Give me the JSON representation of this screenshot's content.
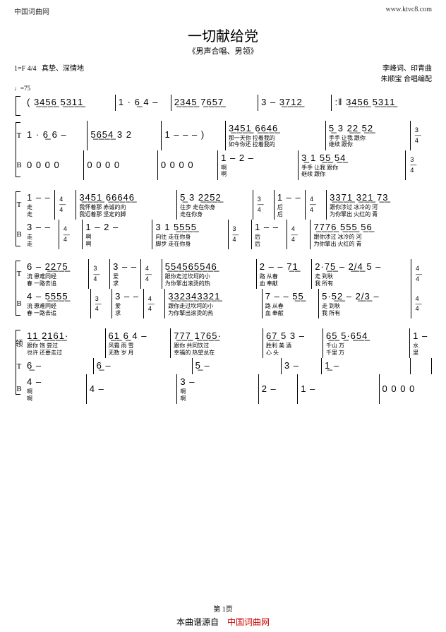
{
  "header": {
    "site_left": "中国词曲网",
    "site_right": "www.ktvc8.com"
  },
  "title": "一切献给党",
  "subtitle": "《男声合唱、男领》",
  "meta": {
    "key_time": "1=F 4/4",
    "expression": "真挚、深情地",
    "credits_line1": "李峰词、印青曲",
    "credits_line2": "朱顺宝 合唱编配",
    "tempo": "♩=75"
  },
  "systems": [
    {
      "bracket_height": 26,
      "parts": [
        {
          "label": "",
          "measures": [
            {
              "notes": "( 3̲4̲5̲6̲ 5̲3̲1̲1̲"
            },
            {
              "notes": "1 · 6̲ 4  –"
            },
            {
              "notes": "2̲3̲4̲5̲  7̲6̲5̲7̲"
            },
            {
              "notes": "3  –   3̲7̲1̲2̲"
            },
            {
              "notes": ":‖ 3̲4̲5̲6̲  5̲3̲1̲1̲",
              "class": "end double-bar"
            }
          ]
        }
      ]
    },
    {
      "bracket_height": 76,
      "parts": [
        {
          "label": "T",
          "measures": [
            {
              "notes": "1 · 6̲ 6  –"
            },
            {
              "notes": "5̲6̲5̲4̲ 3  2"
            },
            {
              "notes": "1  – –  – )"
            },
            {
              "notes": "3̲4̲5̲1̲  6̲6̲4̲6̲",
              "lyrics": [
                "那一天你 拉着我的",
                "如今你还 拉着我的"
              ]
            },
            {
              "notes": "5̲ 3  2̲2̲ 5̲2̲",
              "lyrics": [
                "手手  让我  跟你",
                "      继续  跟你"
              ]
            },
            {
              "notes": "3/4",
              "ts": true,
              "class": "end"
            }
          ]
        },
        {
          "label": "B",
          "measures": [
            {
              "notes": " 0 0 0 0"
            },
            {
              "notes": " 0 0   0 0"
            },
            {
              "notes": " 0 0 0 0"
            },
            {
              "notes": " 1  –  2  –",
              "lyrics": [
                "啊",
                "啊"
              ]
            },
            {
              "notes": "3̲ 1  5̲5̲ 5̲4̲",
              "lyrics": [
                "手手  让我  跟你",
                "      继续  跟你"
              ]
            },
            {
              "notes": "3/4",
              "ts": true,
              "class": "end"
            }
          ]
        }
      ]
    },
    {
      "bracket_height": 76,
      "parts": [
        {
          "label": "T",
          "measures": [
            {
              "notes": "1 – –",
              "lyrics": [
                "走",
                "走"
              ]
            },
            {
              "notes": "4/4",
              "ts": true
            },
            {
              "notes": "3̲4̲5̲1̲ 6̲6̲6̲4̲6̲",
              "lyrics": [
                "我怀着那 赤诚的向",
                "我迈着那 坚定的脚"
              ]
            },
            {
              "notes": "5̲ 3  2̲2̲5̲2̲",
              "lyrics": [
                "往步 走在你身",
                "    走在你身"
              ]
            },
            {
              "notes": "3/4",
              "ts": true
            },
            {
              "notes": "1 – –",
              "lyrics": [
                "后",
                "后"
              ]
            },
            {
              "notes": "4/4",
              "ts": true
            },
            {
              "notes": "3̲3̲7̲1̲ 3̲2̲1̲ 7̲3̲",
              "lyrics": [
                "跟你涉过 冰冷的 河",
                "为你擎出 火红的 青"
              ],
              "class": "end"
            }
          ]
        },
        {
          "label": "B",
          "measures": [
            {
              "notes": "3 – –",
              "lyrics": [
                "走",
                "走"
              ]
            },
            {
              "notes": "4/4",
              "ts": true
            },
            {
              "notes": " 1  –  2  –",
              "lyrics": [
                "啊",
                "啊"
              ]
            },
            {
              "notes": "3 1 5̲5̲5̲5̲",
              "lyrics": [
                "向往 走在你身",
                "脚步 走在你身"
              ]
            },
            {
              "notes": "3/4",
              "ts": true
            },
            {
              "notes": "1 – –",
              "lyrics": [
                "后",
                "后"
              ]
            },
            {
              "notes": "4/4",
              "ts": true
            },
            {
              "notes": "7̲7̲7̲6̲ 5̲5̲5̲ 5̲6̲",
              "lyrics": [
                "跟你涉过 冰冷的 河",
                "为你擎出 火红的 青"
              ],
              "class": "end"
            }
          ]
        }
      ]
    },
    {
      "bracket_height": 76,
      "parts": [
        {
          "label": "T",
          "measures": [
            {
              "notes": "6 – 2̲2̲7̲5̲",
              "lyrics": [
                "流   患难同经",
                "春   一路去追"
              ]
            },
            {
              "notes": "3/4",
              "ts": true
            },
            {
              "notes": "3 – –",
              "lyrics": [
                "爱",
                "求"
              ]
            },
            {
              "notes": "4/4",
              "ts": true
            },
            {
              "notes": "5̲5̲4̲5̲6̲5̲5̲4̲6̲",
              "lyrics": [
                "跟你走过坎坷的小",
                "为你擎出滚烫的热"
              ]
            },
            {
              "notes": "2 – – 7̲1̲",
              "lyrics": [
                "路      从春",
                "血      奉献"
              ]
            },
            {
              "notes": "2·7̲5̲ – 2̲/̲4̲ 5 –",
              "lyrics": [
                "走  到秋",
                "我  所有"
              ]
            },
            {
              "notes": "4/4",
              "ts": true,
              "class": "end"
            }
          ]
        },
        {
          "label": "B",
          "measures": [
            {
              "notes": "4 – 5̲5̲5̲5̲",
              "lyrics": [
                "流   患难同经",
                "春   一路去追"
              ]
            },
            {
              "notes": "3/4",
              "ts": true
            },
            {
              "notes": "3 – –",
              "lyrics": [
                "爱",
                "求"
              ]
            },
            {
              "notes": "4/4",
              "ts": true
            },
            {
              "notes": "3̲3̲2̲3̲4̲3̲3̲2̲1̲",
              "lyrics": [
                "跟你走过坎坷的小",
                "为你擎出滚烫的热"
              ]
            },
            {
              "notes": "7 – – 5̲5̲",
              "lyrics": [
                "路      从春",
                "血      奉献"
              ]
            },
            {
              "notes": "5·5̲2̲ – 2̲/̲3̲ –",
              "lyrics": [
                "走  到秋",
                "我  所有"
              ]
            },
            {
              "notes": "4/4",
              "ts": true,
              "class": "end"
            }
          ]
        }
      ]
    },
    {
      "bracket_height": 90,
      "parts": [
        {
          "label": "领",
          "measures": [
            {
              "notes": "1̲1̲ 2̲1̲6̲1̲·",
              "lyrics": [
                "跟你 饱  尝过",
                "也许 还要走过"
              ]
            },
            {
              "notes": "6̲1̲ 6̲ 4 –",
              "lyrics": [
                "风霜 雨  雪",
                "无数 岁  月"
              ]
            },
            {
              "notes": "7̲7̲7̲ 1̲7̲6̲5̲·",
              "lyrics": [
                "跟你  共同饮过",
                "幸福的 热望总在"
              ]
            },
            {
              "notes": "6̲7̲ 5 3 –",
              "lyrics": [
                "胜利 美 酒",
                "心   头"
              ]
            },
            {
              "notes": "6̲5̲  5̲·6̲5̲4̲",
              "lyrics": [
                "千山 万",
                "千里 万"
              ]
            },
            {
              "notes": "1 –",
              "lyrics": [
                "水",
                "里"
              ],
              "class": "end"
            }
          ]
        },
        {
          "label": "T",
          "measures": [
            {
              "notes": "6̲          –"
            },
            {
              "notes": "6̲                –"
            },
            {
              "notes": "5̲              –"
            },
            {
              "notes": "3     –"
            },
            {
              "notes": "1̲              –"
            },
            {
              "notes": ""
            }
          ]
        },
        {
          "label": "B",
          "measures": [
            {
              "notes": "4          –",
              "lyrics": [
                "啊",
                "啊"
              ]
            },
            {
              "notes": "4                –"
            },
            {
              "notes": "3              –",
              "lyrics": [
                "啊",
                "啊"
              ]
            },
            {
              "notes": "2     –"
            },
            {
              "notes": "1              –"
            },
            {
              "notes": "0  0  0  0",
              "class": "end"
            }
          ]
        }
      ]
    }
  ],
  "footer": {
    "page_num": "第 1页",
    "source_prefix": "本曲谱源自",
    "source_site": "中国词曲网"
  }
}
